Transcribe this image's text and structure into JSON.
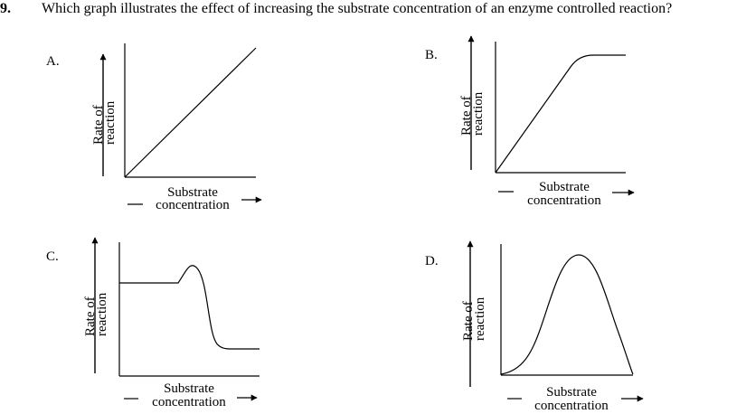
{
  "question": {
    "number": "9.",
    "text": "Which graph illustrates the effect of increasing the substrate concentration of an enzyme controlled reaction?"
  },
  "options": [
    {
      "letter": "A.",
      "y_label_line1": "Rate of",
      "y_label_line2": "reaction",
      "x_label_line1": "Substrate",
      "x_label_line2": "concentration",
      "curve": "linear increase"
    },
    {
      "letter": "B.",
      "y_label_line1": "Rate of",
      "y_label_line2": "reaction",
      "x_label_line1": "Substrate",
      "x_label_line2": "concentration",
      "curve": "linear increase then plateau"
    },
    {
      "letter": "C.",
      "y_label_line1": "Rate of",
      "y_label_line2": "reaction",
      "x_label_line1": "Substrate",
      "x_label_line2": "concentration",
      "curve": "flat, small peak, then drop to low level"
    },
    {
      "letter": "D.",
      "y_label_line1": "Rate of",
      "y_label_line2": "reaction",
      "x_label_line1": "Substrate",
      "x_label_line2": "concentration",
      "curve": "bell curve"
    }
  ]
}
